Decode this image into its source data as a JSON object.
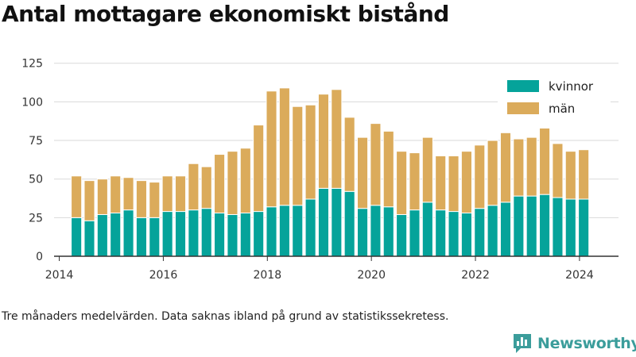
{
  "title": "Antal mottagare ekonomiskt bistånd",
  "footnote": "Tre månaders medelvärden. Data saknas ibland på grund av statistikssekretess.",
  "brand": {
    "name": "Newsworthy",
    "icon": "newsworthy-logo-icon",
    "color": "#3b9d9b"
  },
  "chart_data": {
    "type": "bar",
    "stacked": true,
    "x_unit": "year",
    "x_ticks": [
      2014,
      2016,
      2018,
      2020,
      2022,
      2024
    ],
    "y_ticks": [
      0,
      25,
      50,
      75,
      100,
      125
    ],
    "ylim": [
      0,
      130
    ],
    "xlim": [
      2013.9,
      2024.75
    ],
    "grid": "horizontal",
    "legend_position": "top-right",
    "x": [
      2014.33,
      2014.58,
      2014.83,
      2015.08,
      2015.33,
      2015.58,
      2015.83,
      2016.08,
      2016.33,
      2016.58,
      2016.83,
      2017.08,
      2017.33,
      2017.58,
      2017.83,
      2018.08,
      2018.33,
      2018.58,
      2018.83,
      2019.08,
      2019.33,
      2019.58,
      2019.83,
      2020.08,
      2020.33,
      2020.58,
      2020.83,
      2021.08,
      2021.33,
      2021.58,
      2021.83,
      2022.08,
      2022.33,
      2022.58,
      2022.83,
      2023.08,
      2023.33,
      2023.58,
      2023.83,
      2024.08
    ],
    "series": [
      {
        "name": "kvinnor",
        "color": "#05a39a",
        "values": [
          25,
          23,
          27,
          28,
          30,
          25,
          25,
          29,
          29,
          30,
          31,
          28,
          27,
          28,
          29,
          32,
          33,
          33,
          37,
          44,
          44,
          42,
          31,
          33,
          32,
          27,
          30,
          35,
          30,
          29,
          28,
          31,
          33,
          35,
          39,
          39,
          40,
          38,
          37,
          37
        ]
      },
      {
        "name": "män",
        "color": "#dbab5b",
        "values": [
          27,
          26,
          23,
          24,
          21,
          24,
          23,
          23,
          23,
          30,
          27,
          38,
          41,
          42,
          56,
          75,
          76,
          64,
          61,
          61,
          64,
          48,
          46,
          53,
          49,
          41,
          37,
          42,
          35,
          36,
          40,
          41,
          42,
          45,
          37,
          38,
          43,
          35,
          31,
          32
        ]
      }
    ]
  }
}
